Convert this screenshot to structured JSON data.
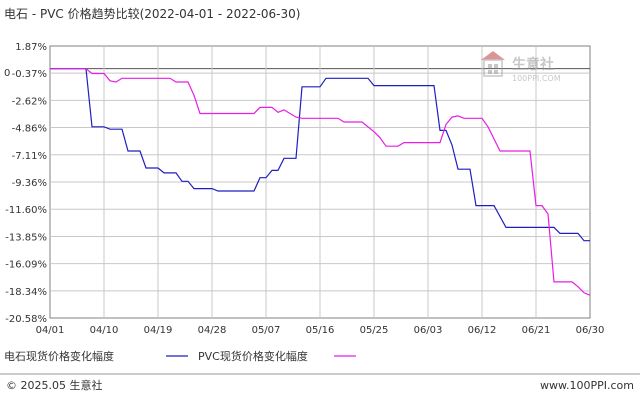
{
  "chart_data": {
    "type": "line",
    "title": "电石 - PVC 价格趋势比较(2022-04-01 - 2022-06-30)",
    "x_tick_labels": [
      "04/01",
      "04/10",
      "04/19",
      "04/28",
      "05/07",
      "05/16",
      "05/25",
      "06/03",
      "06/12",
      "06/21",
      "06/30"
    ],
    "y_tick_labels": [
      "1.87%",
      "-0.37%",
      "-2.62%",
      "-4.86%",
      "-7.11%",
      "-9.36%",
      "-11.60%",
      "-13.85%",
      "-16.09%",
      "-18.34%",
      "-20.58%"
    ],
    "y_tick_values": [
      1.87,
      -0.37,
      -2.62,
      -4.86,
      -7.11,
      -9.36,
      -11.6,
      -13.85,
      -16.09,
      -18.34,
      -20.58
    ],
    "ylim": [
      -20.58,
      1.87
    ],
    "x_axis_origin_label": "0",
    "grid": true,
    "legend_position": "bottom",
    "series": [
      {
        "name": "电石现货价格变化幅度",
        "color": "#1f1fbf",
        "points": [
          [
            "2022-04-01",
            0
          ],
          [
            "2022-04-07",
            0
          ],
          [
            "2022-04-08",
            -4.8
          ],
          [
            "2022-04-10",
            -4.8
          ],
          [
            "2022-04-11",
            -5.0
          ],
          [
            "2022-04-13",
            -5.0
          ],
          [
            "2022-04-14",
            -6.8
          ],
          [
            "2022-04-16",
            -6.8
          ],
          [
            "2022-04-17",
            -8.2
          ],
          [
            "2022-04-19",
            -8.2
          ],
          [
            "2022-04-20",
            -8.6
          ],
          [
            "2022-04-22",
            -8.6
          ],
          [
            "2022-04-23",
            -9.3
          ],
          [
            "2022-04-24",
            -9.3
          ],
          [
            "2022-04-25",
            -9.9
          ],
          [
            "2022-04-28",
            -9.9
          ],
          [
            "2022-04-29",
            -10.1
          ],
          [
            "2022-05-05",
            -10.1
          ],
          [
            "2022-05-06",
            -9.0
          ],
          [
            "2022-05-07",
            -9.0
          ],
          [
            "2022-05-08",
            -8.4
          ],
          [
            "2022-05-09",
            -8.4
          ],
          [
            "2022-05-10",
            -7.4
          ],
          [
            "2022-05-12",
            -7.4
          ],
          [
            "2022-05-13",
            -1.5
          ],
          [
            "2022-05-16",
            -1.5
          ],
          [
            "2022-05-17",
            -0.8
          ],
          [
            "2022-05-24",
            -0.8
          ],
          [
            "2022-05-25",
            -1.4
          ],
          [
            "2022-06-04",
            -1.4
          ],
          [
            "2022-06-05",
            -5.1
          ],
          [
            "2022-06-06",
            -5.1
          ],
          [
            "2022-06-07",
            -6.3
          ],
          [
            "2022-06-08",
            -8.3
          ],
          [
            "2022-06-10",
            -8.3
          ],
          [
            "2022-06-11",
            -11.3
          ],
          [
            "2022-06-14",
            -11.3
          ],
          [
            "2022-06-16",
            -13.1
          ],
          [
            "2022-06-24",
            -13.1
          ],
          [
            "2022-06-25",
            -13.6
          ],
          [
            "2022-06-28",
            -13.6
          ],
          [
            "2022-06-29",
            -14.2
          ],
          [
            "2022-06-30",
            -14.2
          ]
        ]
      },
      {
        "name": "PVC现货价格变化幅度",
        "color": "#e61ee6",
        "points": [
          [
            "2022-04-01",
            0
          ],
          [
            "2022-04-07",
            0
          ],
          [
            "2022-04-08",
            -0.4
          ],
          [
            "2022-04-10",
            -0.4
          ],
          [
            "2022-04-11",
            -1.0
          ],
          [
            "2022-04-12",
            -1.1
          ],
          [
            "2022-04-13",
            -0.8
          ],
          [
            "2022-04-21",
            -0.8
          ],
          [
            "2022-04-22",
            -1.1
          ],
          [
            "2022-04-24",
            -1.1
          ],
          [
            "2022-04-25",
            -2.2
          ],
          [
            "2022-04-26",
            -3.7
          ],
          [
            "2022-05-05",
            -3.7
          ],
          [
            "2022-05-06",
            -3.2
          ],
          [
            "2022-05-08",
            -3.2
          ],
          [
            "2022-05-09",
            -3.6
          ],
          [
            "2022-05-10",
            -3.4
          ],
          [
            "2022-05-12",
            -4.0
          ],
          [
            "2022-05-13",
            -4.1
          ],
          [
            "2022-05-19",
            -4.1
          ],
          [
            "2022-05-20",
            -4.4
          ],
          [
            "2022-05-23",
            -4.4
          ],
          [
            "2022-05-25",
            -5.2
          ],
          [
            "2022-05-26",
            -5.7
          ],
          [
            "2022-05-27",
            -6.4
          ],
          [
            "2022-05-29",
            -6.4
          ],
          [
            "2022-05-30",
            -6.1
          ],
          [
            "2022-06-05",
            -6.1
          ],
          [
            "2022-06-06",
            -4.6
          ],
          [
            "2022-06-07",
            -4.0
          ],
          [
            "2022-06-08",
            -3.9
          ],
          [
            "2022-06-09",
            -4.1
          ],
          [
            "2022-06-12",
            -4.1
          ],
          [
            "2022-06-13",
            -4.8
          ],
          [
            "2022-06-14",
            -5.8
          ],
          [
            "2022-06-15",
            -6.8
          ],
          [
            "2022-06-20",
            -6.8
          ],
          [
            "2022-06-21",
            -11.3
          ],
          [
            "2022-06-22",
            -11.3
          ],
          [
            "2022-06-23",
            -12.0
          ],
          [
            "2022-06-24",
            -17.6
          ],
          [
            "2022-06-27",
            -17.6
          ],
          [
            "2022-06-28",
            -18.0
          ],
          [
            "2022-06-29",
            -18.5
          ],
          [
            "2022-06-30",
            -18.7
          ]
        ]
      }
    ]
  },
  "watermark": {
    "brand_text": "生意社",
    "url_text": "100PPI.COM"
  },
  "footer": {
    "copyright": "© 2025.05 生意社",
    "website": "www.100PPI.com"
  },
  "colors": {
    "axis": "#808080",
    "grid": "#c8c8c8",
    "background": "#ffffff",
    "top_y_label": "#cc0000",
    "bottom_y_label": "#cc0000",
    "footer_rule": "#999999",
    "watermark": "#b0b0b0"
  }
}
